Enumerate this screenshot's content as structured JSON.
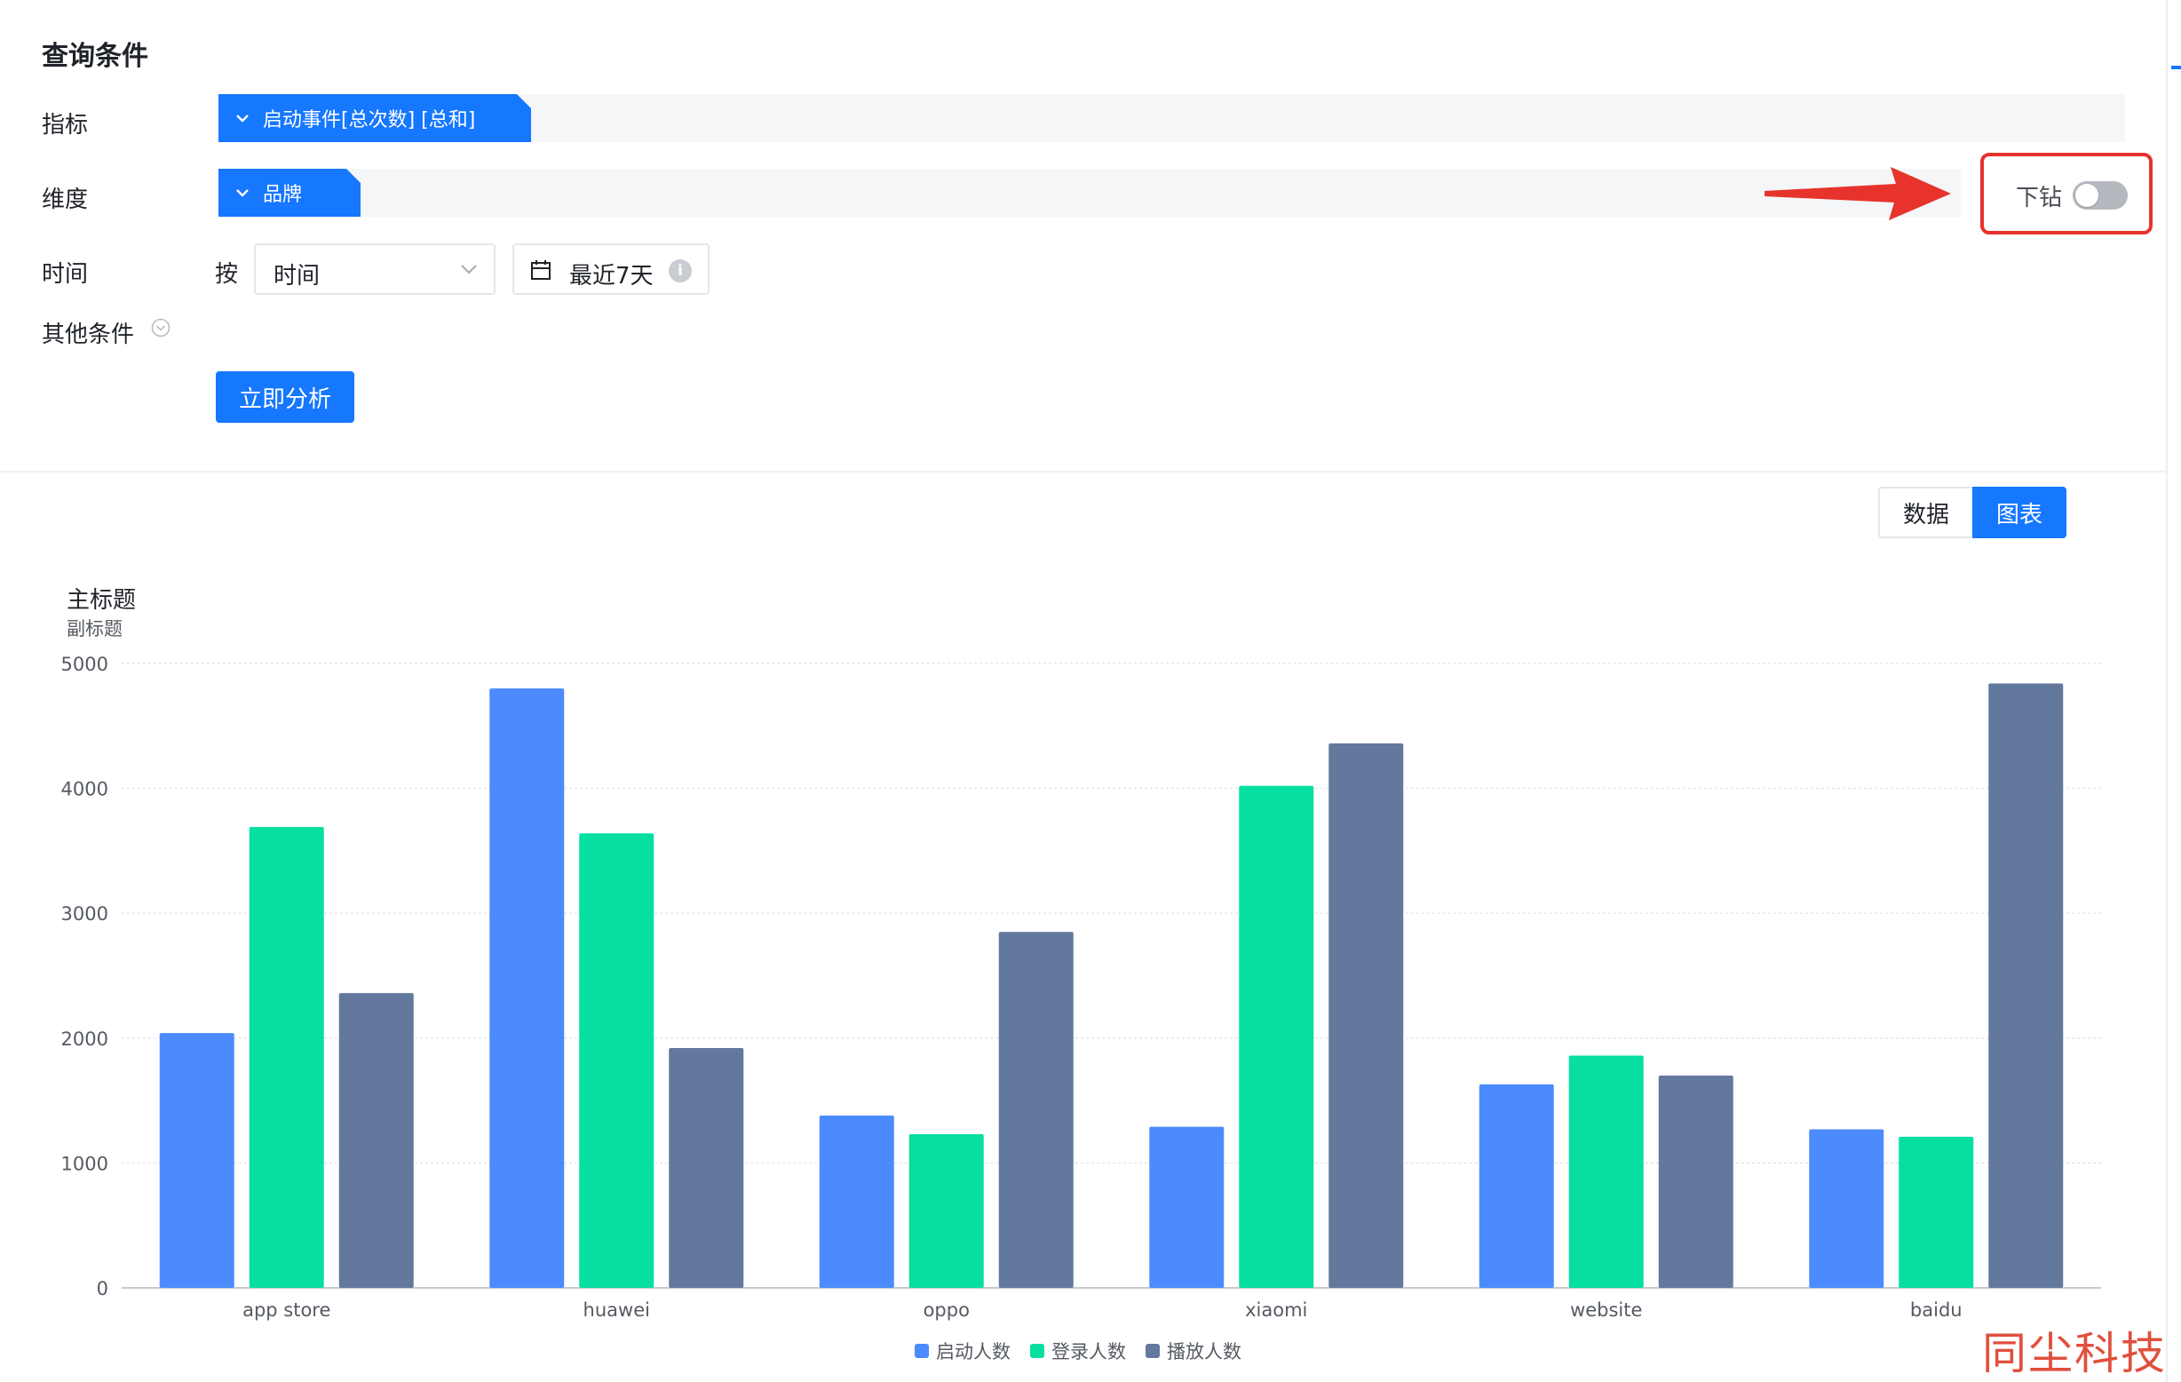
{
  "query": {
    "title": "查询条件",
    "metric": {
      "label": "指标",
      "tag": "启动事件[总次数] [总和]"
    },
    "dimension": {
      "label": "维度",
      "tag": "品牌"
    },
    "drill": {
      "label": "下钻",
      "enabled": false
    },
    "time": {
      "label": "时间",
      "by_label": "按",
      "granularity": "时间",
      "range": "最近7天"
    },
    "other": {
      "label": "其他条件"
    },
    "analyze_button": "立即分析"
  },
  "view_toggle": {
    "data_label": "数据",
    "chart_label": "图表",
    "active": "图表"
  },
  "colors": {
    "primary": "#1677ff",
    "series1": "#4b8bfd",
    "series2": "#06dfa0",
    "series3": "#63789d",
    "annotation": "#e8322c"
  },
  "chart_data": {
    "type": "bar",
    "title": "主标题",
    "subtitle": "副标题",
    "categories": [
      "app store",
      "huawei",
      "oppo",
      "xiaomi",
      "website",
      "baidu"
    ],
    "series": [
      {
        "name": "启动人数",
        "values": [
          2040,
          4800,
          1380,
          1290,
          1630,
          1270
        ]
      },
      {
        "name": "登录人数",
        "values": [
          3690,
          3640,
          1230,
          4020,
          1860,
          1210
        ]
      },
      {
        "name": "播放人数",
        "values": [
          2360,
          1920,
          2850,
          4360,
          1700,
          4840
        ]
      }
    ],
    "ylim": [
      0,
      5000
    ],
    "yticks": [
      0,
      1000,
      2000,
      3000,
      4000,
      5000
    ],
    "grid": true,
    "legend": "bottom-center"
  },
  "watermark": "同尘科技"
}
